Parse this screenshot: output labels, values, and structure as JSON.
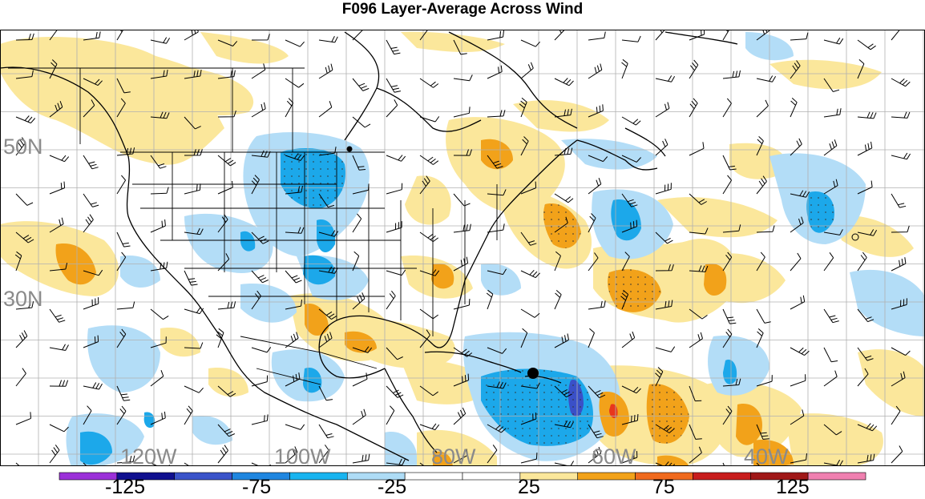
{
  "title": "F096 Layer-Average Across Wind",
  "lat_labels": [
    "50N",
    "30N"
  ],
  "lon_labels": [
    "120W",
    "100W",
    "80W",
    "60W",
    "40W"
  ],
  "colorbar": {
    "colors": [
      "#9b30d9",
      "#10108f",
      "#3a53c9",
      "#1f86e0",
      "#18b4f0",
      "#aedcf6",
      "#ffffff",
      "#ffffff",
      "#fbe79b",
      "#f2a21a",
      "#f06a1e",
      "#c81d1d",
      "#a01818",
      "#f080b0"
    ],
    "labels": [
      "-125",
      "-75",
      "-25",
      "25",
      "75",
      "125"
    ]
  },
  "map_colors": {
    "light_blue": "#b3ddf7",
    "mid_blue": "#1ca8ea",
    "dark_blue": "#3a50c8",
    "light_yellow": "#fbe79b",
    "orange": "#f2a21a",
    "red": "#e8361c",
    "grid": "#b0b0b0",
    "coast": "#000000"
  },
  "markers": [
    {
      "name": "storm-center",
      "lon": -70,
      "lat": 21
    }
  ]
}
